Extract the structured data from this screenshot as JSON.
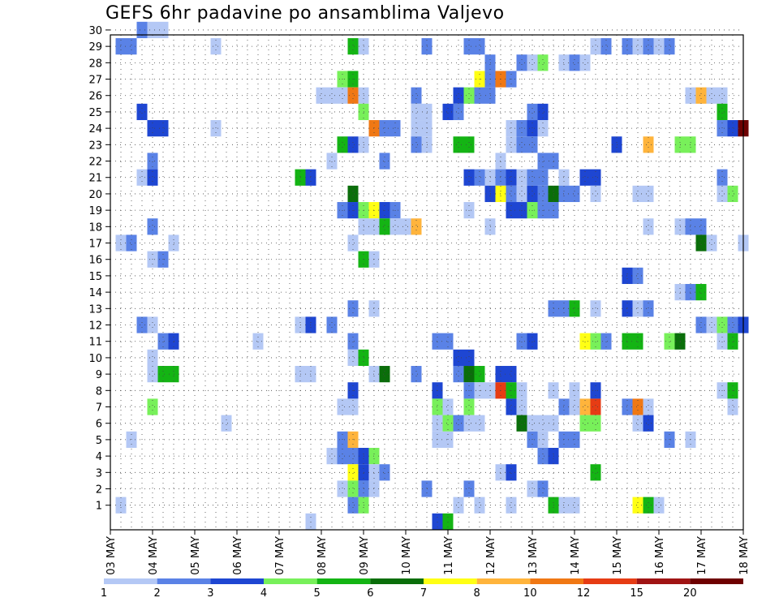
{
  "chart_data": {
    "type": "heatmap",
    "title": "GEFS 6hr padavine po ansamblima Valjevo",
    "xlabel": "",
    "ylabel": "",
    "x_tick_labels": [
      "03 MAY",
      "04 MAY",
      "05 MAY",
      "06 MAY",
      "07 MAY",
      "08 MAY",
      "09 MAY",
      "10 MAY",
      "11 MAY",
      "12 MAY",
      "13 MAY",
      "14 MAY",
      "15 MAY",
      "16 MAY",
      "17 MAY",
      "18 MAY"
    ],
    "y_tick_labels": [
      "1",
      "2",
      "3",
      "4",
      "5",
      "6",
      "7",
      "8",
      "9",
      "10",
      "11",
      "12",
      "13",
      "14",
      "15",
      "16",
      "17",
      "18",
      "19",
      "20",
      "21",
      "22",
      "23",
      "24",
      "25",
      "26",
      "27",
      "28",
      "29",
      "30"
    ],
    "x_unit": "6-hour step (4 per day), 0 = 03 MAY 00Z",
    "xlim": [
      0,
      60
    ],
    "ylim": [
      0,
      30
    ],
    "grid": true,
    "colorbar": {
      "labels": [
        "1",
        "2",
        "3",
        "4",
        "5",
        "6",
        "7",
        "8",
        "10",
        "12",
        "15",
        "20"
      ],
      "colors": [
        "#b4c8f5",
        "#5a82e6",
        "#1e46d2",
        "#78f05a",
        "#14b414",
        "#0a6e0a",
        "#ffff14",
        "#ffb43c",
        "#f07814",
        "#e63c14",
        "#a01414",
        "#6e0000"
      ]
    },
    "cells_format": "[x_step, member, color_index]",
    "cells": [
      [
        4,
        30,
        0
      ],
      [
        5,
        30,
        0
      ],
      [
        3,
        30,
        1
      ],
      [
        1,
        29,
        1
      ],
      [
        2,
        29,
        1
      ],
      [
        10,
        29,
        0
      ],
      [
        23,
        29,
        4
      ],
      [
        24,
        29,
        0
      ],
      [
        30,
        29,
        1
      ],
      [
        34,
        29,
        1
      ],
      [
        35,
        29,
        1
      ],
      [
        46,
        29,
        0
      ],
      [
        47,
        29,
        1
      ],
      [
        49,
        29,
        1
      ],
      [
        50,
        29,
        0
      ],
      [
        51,
        29,
        1
      ],
      [
        52,
        29,
        0
      ],
      [
        53,
        29,
        1
      ],
      [
        36,
        28,
        1
      ],
      [
        39,
        28,
        1
      ],
      [
        40,
        28,
        0
      ],
      [
        41,
        28,
        3
      ],
      [
        43,
        28,
        0
      ],
      [
        44,
        28,
        1
      ],
      [
        45,
        28,
        0
      ],
      [
        23,
        27,
        4
      ],
      [
        22,
        27,
        3
      ],
      [
        35,
        27,
        6
      ],
      [
        36,
        27,
        1
      ],
      [
        37,
        27,
        8
      ],
      [
        38,
        27,
        1
      ],
      [
        23,
        26,
        8
      ],
      [
        20,
        26,
        0
      ],
      [
        21,
        26,
        0
      ],
      [
        22,
        26,
        0
      ],
      [
        24,
        26,
        0
      ],
      [
        29,
        26,
        1
      ],
      [
        33,
        26,
        2
      ],
      [
        34,
        26,
        3
      ],
      [
        35,
        26,
        1
      ],
      [
        36,
        26,
        1
      ],
      [
        55,
        26,
        0
      ],
      [
        56,
        26,
        7
      ],
      [
        57,
        26,
        0
      ],
      [
        58,
        26,
        0
      ],
      [
        24,
        25,
        3
      ],
      [
        3,
        25,
        2
      ],
      [
        29,
        25,
        0
      ],
      [
        30,
        25,
        0
      ],
      [
        32,
        25,
        2
      ],
      [
        33,
        25,
        1
      ],
      [
        40,
        25,
        1
      ],
      [
        41,
        25,
        2
      ],
      [
        58,
        25,
        4
      ],
      [
        4,
        24,
        2
      ],
      [
        5,
        24,
        2
      ],
      [
        10,
        24,
        0
      ],
      [
        25,
        24,
        8
      ],
      [
        26,
        24,
        1
      ],
      [
        27,
        24,
        1
      ],
      [
        29,
        24,
        0
      ],
      [
        30,
        24,
        0
      ],
      [
        38,
        24,
        0
      ],
      [
        39,
        24,
        1
      ],
      [
        40,
        24,
        2
      ],
      [
        41,
        24,
        0
      ],
      [
        58,
        24,
        1
      ],
      [
        59,
        24,
        2
      ],
      [
        60,
        24,
        11
      ],
      [
        22,
        23,
        4
      ],
      [
        23,
        23,
        2
      ],
      [
        24,
        23,
        0
      ],
      [
        29,
        23,
        1
      ],
      [
        30,
        23,
        0
      ],
      [
        33,
        23,
        4
      ],
      [
        34,
        23,
        4
      ],
      [
        38,
        23,
        0
      ],
      [
        39,
        23,
        1
      ],
      [
        40,
        23,
        1
      ],
      [
        48,
        23,
        2
      ],
      [
        51,
        23,
        7
      ],
      [
        54,
        23,
        3
      ],
      [
        55,
        23,
        3
      ],
      [
        4,
        22,
        1
      ],
      [
        21,
        22,
        0
      ],
      [
        26,
        22,
        1
      ],
      [
        37,
        22,
        0
      ],
      [
        41,
        22,
        1
      ],
      [
        42,
        22,
        1
      ],
      [
        4,
        21,
        2
      ],
      [
        3,
        21,
        0
      ],
      [
        18,
        21,
        4
      ],
      [
        19,
        21,
        2
      ],
      [
        34,
        21,
        2
      ],
      [
        35,
        21,
        1
      ],
      [
        36,
        21,
        0
      ],
      [
        37,
        21,
        1
      ],
      [
        38,
        21,
        2
      ],
      [
        39,
        21,
        0
      ],
      [
        40,
        21,
        1
      ],
      [
        41,
        21,
        1
      ],
      [
        43,
        21,
        0
      ],
      [
        45,
        21,
        2
      ],
      [
        46,
        21,
        2
      ],
      [
        58,
        21,
        1
      ],
      [
        23,
        20,
        5
      ],
      [
        37,
        20,
        6
      ],
      [
        36,
        20,
        2
      ],
      [
        38,
        20,
        1
      ],
      [
        39,
        20,
        0
      ],
      [
        40,
        20,
        2
      ],
      [
        41,
        20,
        1
      ],
      [
        42,
        20,
        5
      ],
      [
        43,
        20,
        1
      ],
      [
        44,
        20,
        1
      ],
      [
        46,
        20,
        0
      ],
      [
        50,
        20,
        0
      ],
      [
        51,
        20,
        0
      ],
      [
        58,
        20,
        0
      ],
      [
        59,
        20,
        3
      ],
      [
        22,
        19,
        1
      ],
      [
        23,
        19,
        2
      ],
      [
        24,
        19,
        3
      ],
      [
        25,
        19,
        6
      ],
      [
        26,
        19,
        2
      ],
      [
        27,
        19,
        1
      ],
      [
        34,
        19,
        0
      ],
      [
        38,
        19,
        2
      ],
      [
        39,
        19,
        2
      ],
      [
        40,
        19,
        3
      ],
      [
        41,
        19,
        1
      ],
      [
        42,
        19,
        1
      ],
      [
        4,
        18,
        1
      ],
      [
        24,
        18,
        0
      ],
      [
        25,
        18,
        0
      ],
      [
        26,
        18,
        4
      ],
      [
        27,
        18,
        0
      ],
      [
        28,
        18,
        0
      ],
      [
        29,
        18,
        7
      ],
      [
        36,
        18,
        0
      ],
      [
        51,
        18,
        0
      ],
      [
        54,
        18,
        0
      ],
      [
        55,
        18,
        1
      ],
      [
        56,
        18,
        1
      ],
      [
        1,
        17,
        0
      ],
      [
        2,
        17,
        1
      ],
      [
        6,
        17,
        0
      ],
      [
        23,
        17,
        0
      ],
      [
        56,
        17,
        5
      ],
      [
        57,
        17,
        0
      ],
      [
        60,
        17,
        0
      ],
      [
        4,
        16,
        0
      ],
      [
        5,
        16,
        1
      ],
      [
        24,
        16,
        4
      ],
      [
        25,
        16,
        0
      ],
      [
        49,
        15,
        2
      ],
      [
        50,
        15,
        1
      ],
      [
        54,
        14,
        0
      ],
      [
        55,
        14,
        1
      ],
      [
        56,
        14,
        4
      ],
      [
        23,
        13,
        1
      ],
      [
        25,
        13,
        0
      ],
      [
        42,
        13,
        1
      ],
      [
        43,
        13,
        1
      ],
      [
        44,
        13,
        4
      ],
      [
        46,
        13,
        0
      ],
      [
        49,
        13,
        2
      ],
      [
        50,
        13,
        0
      ],
      [
        51,
        13,
        1
      ],
      [
        3,
        12,
        1
      ],
      [
        4,
        12,
        0
      ],
      [
        18,
        12,
        0
      ],
      [
        19,
        12,
        2
      ],
      [
        21,
        12,
        1
      ],
      [
        56,
        12,
        1
      ],
      [
        57,
        12,
        0
      ],
      [
        58,
        12,
        3
      ],
      [
        59,
        12,
        1
      ],
      [
        60,
        12,
        2
      ],
      [
        5,
        11,
        1
      ],
      [
        6,
        11,
        2
      ],
      [
        14,
        11,
        0
      ],
      [
        23,
        11,
        1
      ],
      [
        31,
        11,
        1
      ],
      [
        32,
        11,
        1
      ],
      [
        39,
        11,
        1
      ],
      [
        40,
        11,
        2
      ],
      [
        45,
        11,
        6
      ],
      [
        46,
        11,
        3
      ],
      [
        47,
        11,
        1
      ],
      [
        49,
        11,
        4
      ],
      [
        50,
        11,
        4
      ],
      [
        53,
        11,
        3
      ],
      [
        54,
        11,
        5
      ],
      [
        58,
        11,
        0
      ],
      [
        59,
        11,
        4
      ],
      [
        4,
        10,
        0
      ],
      [
        23,
        10,
        0
      ],
      [
        24,
        10,
        4
      ],
      [
        33,
        10,
        2
      ],
      [
        34,
        10,
        2
      ],
      [
        4,
        9,
        0
      ],
      [
        5,
        9,
        4
      ],
      [
        6,
        9,
        4
      ],
      [
        18,
        9,
        0
      ],
      [
        19,
        9,
        0
      ],
      [
        25,
        9,
        0
      ],
      [
        26,
        9,
        5
      ],
      [
        29,
        9,
        1
      ],
      [
        33,
        9,
        1
      ],
      [
        34,
        9,
        5
      ],
      [
        35,
        9,
        4
      ],
      [
        37,
        9,
        2
      ],
      [
        38,
        9,
        2
      ],
      [
        23,
        8,
        2
      ],
      [
        31,
        8,
        2
      ],
      [
        34,
        8,
        1
      ],
      [
        35,
        8,
        0
      ],
      [
        36,
        8,
        0
      ],
      [
        37,
        8,
        9
      ],
      [
        38,
        8,
        4
      ],
      [
        39,
        8,
        0
      ],
      [
        42,
        8,
        0
      ],
      [
        44,
        8,
        0
      ],
      [
        46,
        8,
        2
      ],
      [
        58,
        8,
        0
      ],
      [
        59,
        8,
        4
      ],
      [
        4,
        7,
        3
      ],
      [
        22,
        7,
        0
      ],
      [
        23,
        7,
        0
      ],
      [
        31,
        7,
        3
      ],
      [
        32,
        7,
        0
      ],
      [
        34,
        7,
        3
      ],
      [
        38,
        7,
        2
      ],
      [
        39,
        7,
        0
      ],
      [
        43,
        7,
        1
      ],
      [
        44,
        7,
        0
      ],
      [
        45,
        7,
        7
      ],
      [
        46,
        7,
        9
      ],
      [
        49,
        7,
        1
      ],
      [
        50,
        7,
        8
      ],
      [
        51,
        7,
        0
      ],
      [
        59,
        7,
        0
      ],
      [
        11,
        6,
        0
      ],
      [
        31,
        6,
        0
      ],
      [
        32,
        6,
        3
      ],
      [
        33,
        6,
        1
      ],
      [
        34,
        6,
        0
      ],
      [
        35,
        6,
        0
      ],
      [
        39,
        6,
        5
      ],
      [
        40,
        6,
        0
      ],
      [
        41,
        6,
        0
      ],
      [
        42,
        6,
        0
      ],
      [
        45,
        6,
        3
      ],
      [
        46,
        6,
        3
      ],
      [
        50,
        6,
        0
      ],
      [
        51,
        6,
        2
      ],
      [
        2,
        5,
        0
      ],
      [
        22,
        5,
        1
      ],
      [
        23,
        5,
        7
      ],
      [
        31,
        5,
        0
      ],
      [
        32,
        5,
        0
      ],
      [
        40,
        5,
        1
      ],
      [
        41,
        5,
        0
      ],
      [
        43,
        5,
        1
      ],
      [
        44,
        5,
        1
      ],
      [
        53,
        5,
        1
      ],
      [
        55,
        5,
        0
      ],
      [
        21,
        4,
        0
      ],
      [
        22,
        4,
        1
      ],
      [
        23,
        4,
        1
      ],
      [
        24,
        4,
        2
      ],
      [
        25,
        4,
        3
      ],
      [
        41,
        4,
        1
      ],
      [
        42,
        4,
        2
      ],
      [
        23,
        3,
        6
      ],
      [
        24,
        3,
        2
      ],
      [
        25,
        3,
        0
      ],
      [
        26,
        3,
        1
      ],
      [
        37,
        3,
        0
      ],
      [
        38,
        3,
        2
      ],
      [
        46,
        3,
        4
      ],
      [
        22,
        2,
        0
      ],
      [
        23,
        2,
        3
      ],
      [
        24,
        2,
        1
      ],
      [
        25,
        2,
        0
      ],
      [
        30,
        2,
        1
      ],
      [
        34,
        2,
        1
      ],
      [
        40,
        2,
        0
      ],
      [
        41,
        2,
        1
      ],
      [
        1,
        1,
        0
      ],
      [
        23,
        1,
        1
      ],
      [
        24,
        1,
        3
      ],
      [
        33,
        1,
        0
      ],
      [
        35,
        1,
        0
      ],
      [
        38,
        1,
        0
      ],
      [
        42,
        1,
        4
      ],
      [
        43,
        1,
        0
      ],
      [
        44,
        1,
        0
      ],
      [
        50,
        1,
        6
      ],
      [
        51,
        1,
        4
      ],
      [
        52,
        1,
        0
      ],
      [
        19,
        0,
        0
      ],
      [
        31,
        0,
        2
      ],
      [
        32,
        0,
        4
      ]
    ]
  }
}
